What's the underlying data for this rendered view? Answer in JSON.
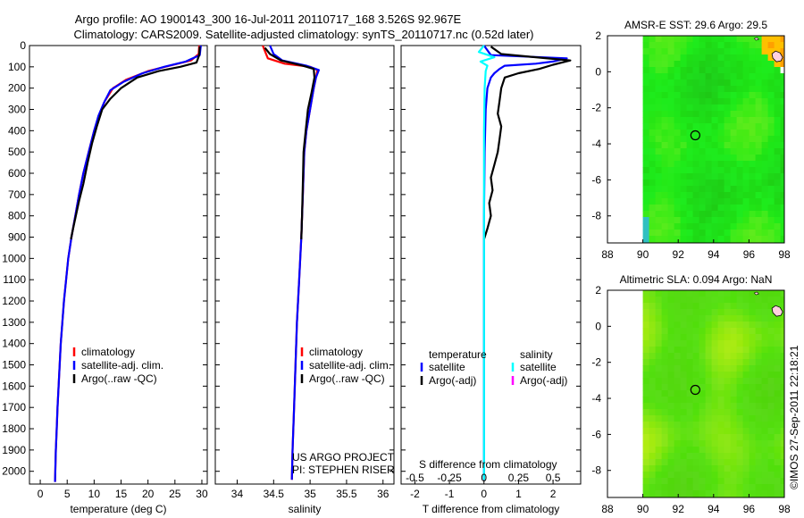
{
  "title": {
    "line1": "Argo profile: AO 1900143_300 16-Jul-2011 20110717_168 3.526S 92.967E",
    "line2": "Climatology: CARS2009. Satellite-adjusted climatology: synTS_20110717.nc (0.52d later)"
  },
  "colors": {
    "climatology": "#ff0000",
    "satellite": "#0000ff",
    "argo": "#000000",
    "sal_sat": "#00ffff",
    "sal_argo": "#ff00ff"
  },
  "credit": "US ARGO PROJECT\nPI: STEPHEN RISER",
  "timestamp": "©IMOS 27-Sep-2011 22:18:21",
  "chart_data": [
    {
      "type": "line",
      "name": "temperature",
      "xlabel": "temperature (deg C)",
      "ylabel": "",
      "xlim": [
        -2,
        31
      ],
      "ylim": [
        2060,
        0
      ],
      "xticks": [
        0,
        5,
        10,
        15,
        20,
        25,
        30
      ],
      "yticks": [
        0,
        100,
        200,
        300,
        400,
        500,
        600,
        700,
        800,
        900,
        1000,
        1100,
        1200,
        1300,
        1400,
        1500,
        1600,
        1700,
        1800,
        1900,
        2000
      ],
      "legend": [
        "climatology",
        "satellite-adj. clim.",
        "Argo(..raw -QC)"
      ],
      "series": [
        {
          "name": "climatology",
          "color": "#ff0000",
          "points": [
            [
              29.5,
              0
            ],
            [
              29.4,
              40
            ],
            [
              28,
              70
            ],
            [
              24,
              95
            ],
            [
              20,
              120
            ],
            [
              16,
              160
            ],
            [
              13.5,
              200
            ],
            [
              12,
              260
            ],
            [
              11,
              320
            ],
            [
              10,
              400
            ],
            [
              9,
              500
            ],
            [
              8,
              600
            ],
            [
              7.2,
              700
            ],
            [
              6.5,
              800
            ],
            [
              5.8,
              900
            ],
            [
              5.2,
              1000
            ],
            [
              4.8,
              1100
            ],
            [
              4.4,
              1200
            ],
            [
              4.1,
              1300
            ],
            [
              3.8,
              1400
            ],
            [
              3.6,
              1500
            ],
            [
              3.4,
              1600
            ],
            [
              3.2,
              1700
            ],
            [
              3.05,
              1800
            ],
            [
              2.9,
              1900
            ],
            [
              2.8,
              2000
            ],
            [
              2.75,
              2050
            ]
          ]
        },
        {
          "name": "satellite-adj. clim.",
          "color": "#0000ff",
          "points": [
            [
              29.8,
              0
            ],
            [
              29.6,
              45
            ],
            [
              27,
              75
            ],
            [
              23,
              100
            ],
            [
              19,
              130
            ],
            [
              15.5,
              170
            ],
            [
              13,
              210
            ],
            [
              11.8,
              270
            ],
            [
              10.8,
              330
            ],
            [
              10,
              400
            ],
            [
              9,
              500
            ],
            [
              8,
              600
            ],
            [
              7.2,
              700
            ],
            [
              6.5,
              800
            ],
            [
              5.8,
              900
            ],
            [
              5.2,
              1000
            ],
            [
              4.8,
              1100
            ],
            [
              4.4,
              1200
            ],
            [
              4.1,
              1300
            ],
            [
              3.8,
              1400
            ],
            [
              3.6,
              1500
            ],
            [
              3.4,
              1600
            ],
            [
              3.2,
              1700
            ],
            [
              3.05,
              1800
            ],
            [
              2.9,
              1900
            ],
            [
              2.8,
              2000
            ],
            [
              2.75,
              2050
            ]
          ]
        },
        {
          "name": "Argo(..raw -QC)",
          "color": "#000000",
          "points": [
            [
              29.6,
              5
            ],
            [
              29.5,
              45
            ],
            [
              29,
              80
            ],
            [
              26,
              100
            ],
            [
              22,
              120
            ],
            [
              18,
              150
            ],
            [
              15,
              200
            ],
            [
              13,
              250
            ],
            [
              11.5,
              300
            ],
            [
              10.5,
              380
            ],
            [
              9.6,
              460
            ],
            [
              8.8,
              550
            ],
            [
              8,
              650
            ],
            [
              7.2,
              730
            ],
            [
              6.6,
              800
            ],
            [
              6.1,
              860
            ],
            [
              5.7,
              910
            ]
          ]
        }
      ]
    },
    {
      "type": "line",
      "name": "salinity",
      "xlabel": "salinity",
      "xlim": [
        33.7,
        36.15
      ],
      "ylim": [
        2060,
        0
      ],
      "xticks": [
        34,
        34.5,
        35,
        35.5,
        36
      ],
      "legend": [
        "climatology",
        "satellite-adj. clim.",
        "Argo(..raw -QC)"
      ],
      "series": [
        {
          "name": "climatology",
          "color": "#ff0000",
          "points": [
            [
              34.35,
              0
            ],
            [
              34.42,
              60
            ],
            [
              34.65,
              85
            ],
            [
              35.0,
              100
            ],
            [
              35.1,
              115
            ],
            [
              35.08,
              150
            ],
            [
              35.05,
              200
            ],
            [
              35.0,
              300
            ],
            [
              34.95,
              400
            ],
            [
              34.92,
              500
            ],
            [
              34.9,
              700
            ],
            [
              34.88,
              900
            ],
            [
              34.85,
              1100
            ],
            [
              34.82,
              1300
            ],
            [
              34.8,
              1500
            ],
            [
              34.78,
              1700
            ],
            [
              34.76,
              1900
            ],
            [
              34.75,
              2040
            ]
          ]
        },
        {
          "name": "satellite-adj. clim.",
          "color": "#0000ff",
          "points": [
            [
              34.45,
              0
            ],
            [
              34.5,
              40
            ],
            [
              34.62,
              70
            ],
            [
              34.95,
              95
            ],
            [
              35.12,
              115
            ],
            [
              35.08,
              150
            ],
            [
              35.05,
              200
            ],
            [
              35.0,
              300
            ],
            [
              34.95,
              400
            ],
            [
              34.92,
              500
            ],
            [
              34.9,
              700
            ],
            [
              34.88,
              900
            ],
            [
              34.85,
              1100
            ],
            [
              34.82,
              1300
            ],
            [
              34.8,
              1500
            ],
            [
              34.78,
              1700
            ],
            [
              34.76,
              1900
            ],
            [
              34.75,
              2040
            ]
          ]
        },
        {
          "name": "Argo(..raw -QC)",
          "color": "#000000",
          "points": [
            [
              34.38,
              10
            ],
            [
              34.45,
              40
            ],
            [
              34.6,
              70
            ],
            [
              34.9,
              95
            ],
            [
              35.05,
              110
            ],
            [
              35.06,
              150
            ],
            [
              35.02,
              220
            ],
            [
              34.97,
              300
            ],
            [
              34.94,
              400
            ],
            [
              34.91,
              500
            ],
            [
              34.9,
              650
            ],
            [
              34.89,
              800
            ],
            [
              34.88,
              910
            ]
          ]
        }
      ]
    },
    {
      "type": "line",
      "name": "difference",
      "xlabel": "T difference from climatology",
      "xlabel2": "S difference from climatology",
      "xlim": [
        -2.4,
        2.8
      ],
      "ylim": [
        2060,
        0
      ],
      "xticks": [
        -2,
        -1,
        0,
        1,
        2
      ],
      "xticks_top": [
        -0.5,
        -0.25,
        0,
        0.25,
        0.5
      ],
      "legend": {
        "temperature_header": "temperature",
        "salinity_header": "salinity",
        "t_sat": "satellite",
        "t_argo": "Argo(-adj)",
        "s_sat": "satellite",
        "s_argo": "Argo(-adj)"
      },
      "series": [
        {
          "name": "temperature satellite",
          "color": "#0000ff",
          "points": [
            [
              0,
              0
            ],
            [
              0.2,
              45
            ],
            [
              2.4,
              60
            ],
            [
              2.0,
              75
            ],
            [
              1.5,
              85
            ],
            [
              0.6,
              95
            ],
            [
              0.45,
              110
            ],
            [
              0.3,
              130
            ],
            [
              0.2,
              150
            ],
            [
              0.1,
              200
            ],
            [
              0.05,
              300
            ],
            [
              0.02,
              500
            ],
            [
              0,
              800
            ],
            [
              0,
              1200
            ],
            [
              0,
              1600
            ],
            [
              0,
              2040
            ]
          ]
        },
        {
          "name": "temperature Argo",
          "color": "#000000",
          "points": [
            [
              0.2,
              5
            ],
            [
              0.5,
              40
            ],
            [
              2.5,
              70
            ],
            [
              2.0,
              90
            ],
            [
              1.6,
              110
            ],
            [
              1.0,
              130
            ],
            [
              0.6,
              150
            ],
            [
              0.5,
              200
            ],
            [
              0.45,
              260
            ],
            [
              0.4,
              320
            ],
            [
              0.5,
              380
            ],
            [
              0.45,
              440
            ],
            [
              0.4,
              500
            ],
            [
              0.3,
              560
            ],
            [
              0.2,
              620
            ],
            [
              0.25,
              680
            ],
            [
              0.15,
              740
            ],
            [
              0.2,
              800
            ],
            [
              0.1,
              860
            ],
            [
              0,
              910
            ]
          ]
        },
        {
          "name": "salinity satellite",
          "color": "#00ffff",
          "points": [
            [
              0,
              0
            ],
            [
              -0.15,
              30
            ],
            [
              0.3,
              55
            ],
            [
              -0.1,
              75
            ],
            [
              0.1,
              95
            ],
            [
              0.05,
              120
            ],
            [
              0.02,
              200
            ],
            [
              0,
              400
            ],
            [
              0,
              800
            ],
            [
              0,
              1200
            ],
            [
              0,
              1600
            ],
            [
              0,
              2040
            ]
          ]
        }
      ]
    },
    {
      "type": "heatmap",
      "name": "sst-map",
      "title": "AMSR-E SST: 29.6 Argo: 29.5",
      "xlim": [
        88,
        98
      ],
      "ylim": [
        -9.5,
        2
      ],
      "xticks": [
        88,
        90,
        92,
        94,
        96,
        98
      ],
      "yticks": [
        -8,
        -6,
        -4,
        -2,
        0,
        2
      ],
      "marker": [
        92.967,
        -3.526
      ]
    },
    {
      "type": "heatmap",
      "name": "sla-map",
      "title": "Altimetric SLA: 0.094 Argo: NaN",
      "xlim": [
        88,
        98
      ],
      "ylim": [
        -9.5,
        2
      ],
      "xticks": [
        88,
        90,
        92,
        94,
        96,
        98
      ],
      "yticks": [
        -8,
        -6,
        -4,
        -2,
        0,
        2
      ],
      "marker": [
        92.967,
        -3.526
      ]
    }
  ]
}
